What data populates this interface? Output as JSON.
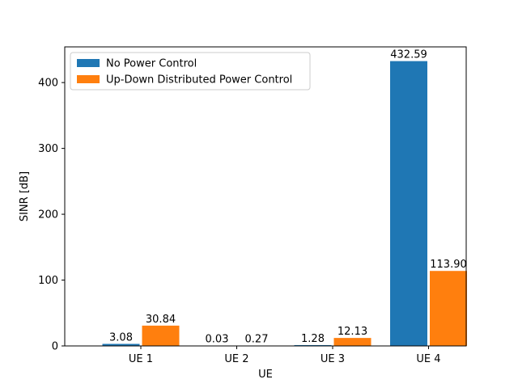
{
  "chart_data": {
    "type": "bar",
    "title": "",
    "xlabel": "UE",
    "ylabel": "SINR [dB]",
    "categories": [
      "UE 1",
      "UE 2",
      "UE 3",
      "UE 4"
    ],
    "series": [
      {
        "name": "No Power Control",
        "color": "#1f77b4",
        "values": [
          3.08,
          0.03,
          1.28,
          432.59
        ],
        "value_labels": [
          "3.08",
          "0.03",
          "1.28",
          "432.59"
        ]
      },
      {
        "name": "Up-Down Distributed Power Control",
        "color": "#ff7f0e",
        "values": [
          30.84,
          0.27,
          12.13,
          113.9
        ],
        "value_labels": [
          "30.84",
          "0.27",
          "12.13",
          "113.90"
        ]
      }
    ],
    "yticks": [
      0,
      100,
      200,
      300,
      400
    ],
    "ylim": [
      0,
      454.2
    ],
    "grid": false,
    "legend": "top-left"
  }
}
